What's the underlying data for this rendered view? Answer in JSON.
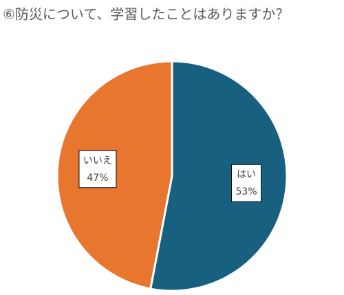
{
  "chart_data": {
    "type": "pie",
    "title": "⑥防災について、学習したことはありますか？",
    "categories": [
      "はい",
      "いいえ"
    ],
    "values": [
      53,
      47
    ],
    "value_labels": [
      "53%",
      "47%"
    ],
    "colors": [
      "#17607f",
      "#e8762f"
    ]
  }
}
